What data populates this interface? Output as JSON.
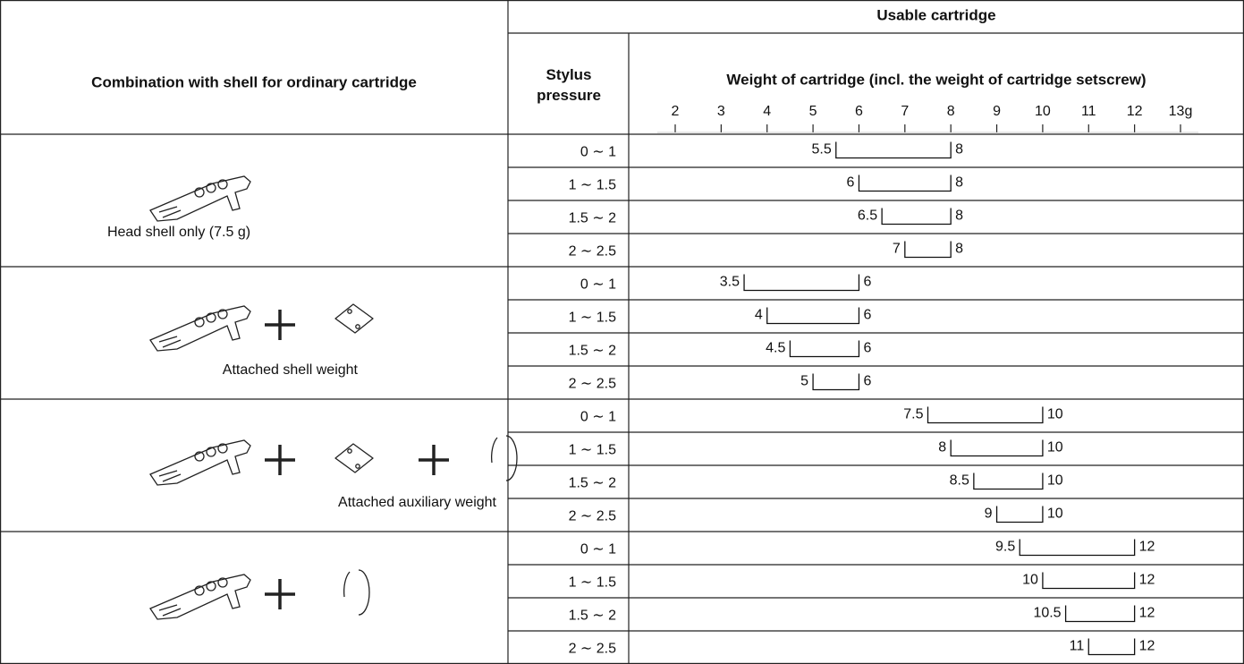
{
  "header": {
    "left": "Combination with shell for ordinary cartridge",
    "usable": "Usable cartridge",
    "pressure": "Stylus pressure",
    "weight": "Weight of cartridge (incl. the weight of cartridge setscrew)"
  },
  "scale": {
    "xlim": [
      2,
      13
    ],
    "xticks": [
      2,
      3,
      4,
      5,
      6,
      7,
      8,
      9,
      10,
      11,
      12,
      {
        "value": 13,
        "label": "13g"
      }
    ]
  },
  "groups": [
    {
      "caption": "Head shell only (7.5 g)",
      "rows": [
        {
          "pressure": "0 ∼ 1",
          "min": 5.5,
          "max": 8
        },
        {
          "pressure": "1 ∼ 1.5",
          "min": 6,
          "max": 8
        },
        {
          "pressure": "1.5 ∼ 2",
          "min": 6.5,
          "max": 8
        },
        {
          "pressure": "2 ∼ 2.5",
          "min": 7,
          "max": 8
        }
      ]
    },
    {
      "caption": "Attached shell weight",
      "rows": [
        {
          "pressure": "0 ∼ 1",
          "min": 3.5,
          "max": 6
        },
        {
          "pressure": "1 ∼ 1.5",
          "min": 4,
          "max": 6
        },
        {
          "pressure": "1.5 ∼ 2",
          "min": 4.5,
          "max": 6
        },
        {
          "pressure": "2 ∼ 2.5",
          "min": 5,
          "max": 6
        }
      ]
    },
    {
      "caption": "Attached auxiliary weight",
      "rows": [
        {
          "pressure": "0 ∼ 1",
          "min": 7.5,
          "max": 10
        },
        {
          "pressure": "1 ∼ 1.5",
          "min": 8,
          "max": 10
        },
        {
          "pressure": "1.5 ∼ 2",
          "min": 8.5,
          "max": 10
        },
        {
          "pressure": "2 ∼ 2.5",
          "min": 9,
          "max": 10
        }
      ]
    },
    {
      "rows": [
        {
          "pressure": "0 ∼ 1",
          "min": 9.5,
          "max": 12
        },
        {
          "pressure": "1 ∼ 1.5",
          "min": 10,
          "max": 12
        },
        {
          "pressure": "1.5 ∼ 2",
          "min": 10.5,
          "max": 12
        },
        {
          "pressure": "2 ∼ 2.5",
          "min": 11,
          "max": 12
        }
      ]
    }
  ]
}
